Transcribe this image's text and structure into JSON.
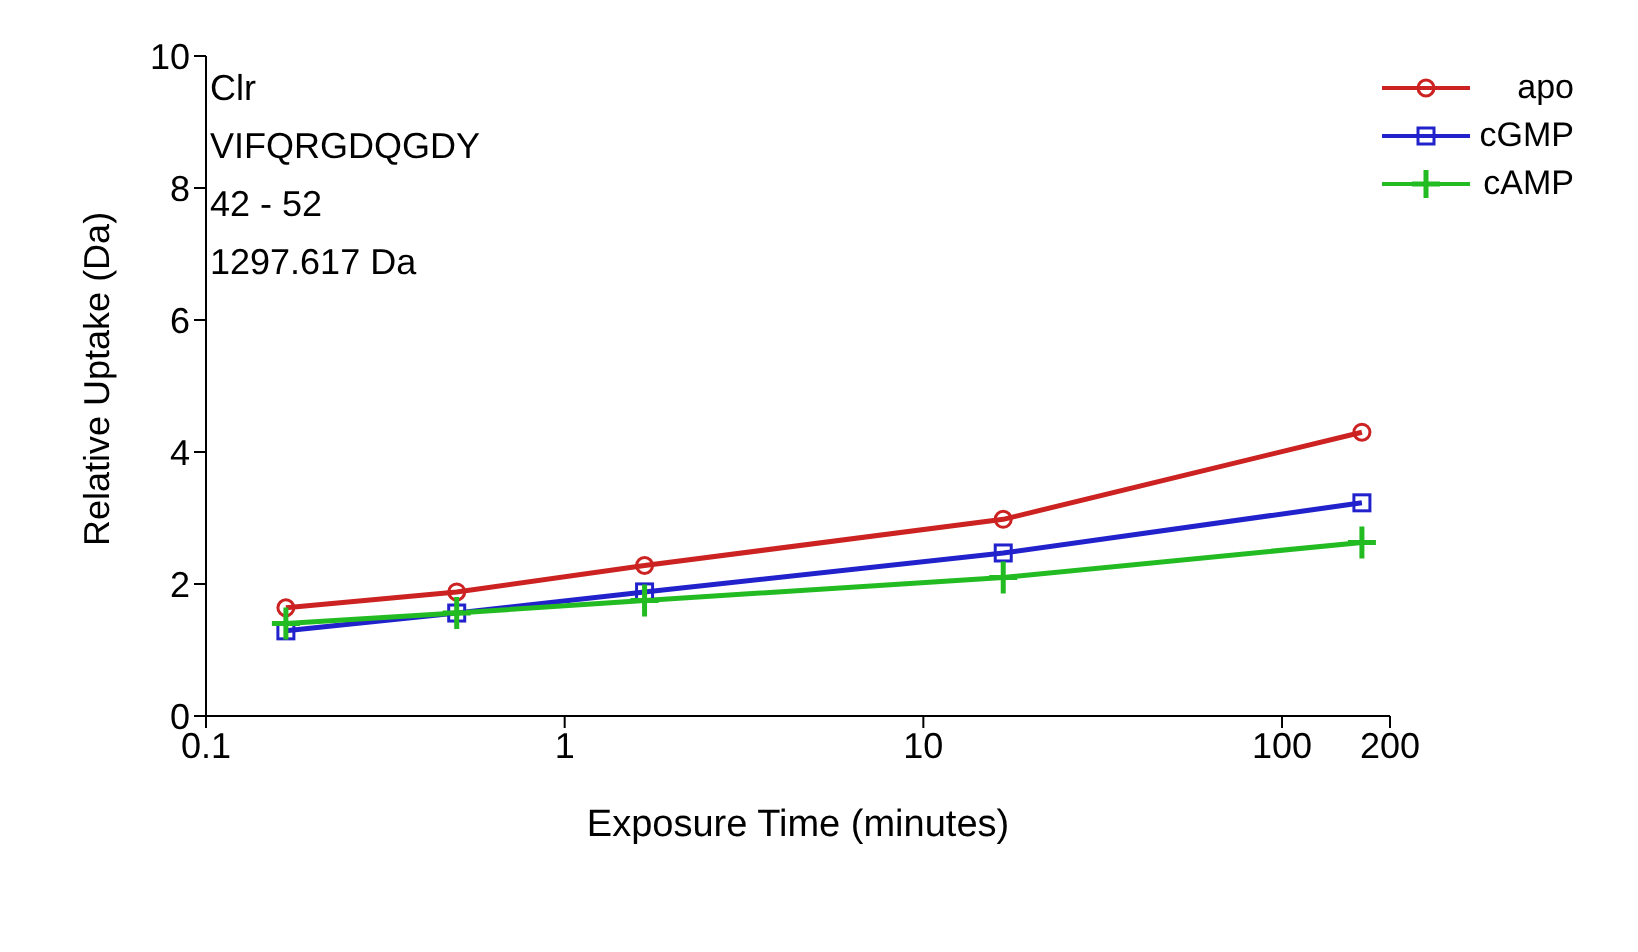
{
  "chart_data": {
    "type": "line",
    "xlabel": "Exposure Time (minutes)",
    "ylabel": "Relative Uptake (Da)",
    "annotations": [
      "Clr",
      "VIFQRGDQGDY",
      "42 - 52",
      "1297.617 Da"
    ],
    "x": [
      0.167,
      0.5,
      1.67,
      16.7,
      167
    ],
    "series": [
      {
        "name": "apo",
        "color": "#cc2222",
        "marker": "circle",
        "values": [
          1.64,
          1.88,
          2.28,
          2.98,
          4.3
        ]
      },
      {
        "name": "cGMP",
        "color": "#2222cc",
        "marker": "square",
        "values": [
          1.29,
          1.56,
          1.88,
          2.47,
          3.23
        ]
      },
      {
        "name": "cAMP",
        "color": "#22bb22",
        "marker": "cross",
        "values": [
          1.4,
          1.56,
          1.75,
          2.1,
          2.63
        ]
      }
    ],
    "log": "x",
    "xlim": [
      0.1,
      200
    ],
    "xticks": [
      0.1,
      1,
      10,
      100,
      200
    ],
    "ylim": [
      0,
      10
    ],
    "yticks": [
      0,
      2,
      4,
      6,
      8,
      10
    ],
    "grid": false,
    "legend": "top right",
    "line_style": "solid"
  }
}
